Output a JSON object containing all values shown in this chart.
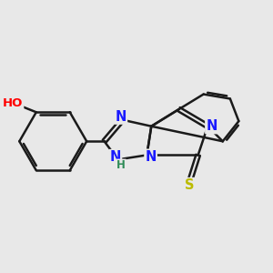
{
  "bg_color": "#e8e8e8",
  "bond_color": "#1a1a1a",
  "bond_width": 1.8,
  "dbo": 0.055,
  "atom_colors": {
    "N": "#1a1aff",
    "O": "#ff0000",
    "S": "#bbbb00",
    "H": "#2e8b57",
    "C": "#1a1a1a"
  },
  "afs": 10.5
}
